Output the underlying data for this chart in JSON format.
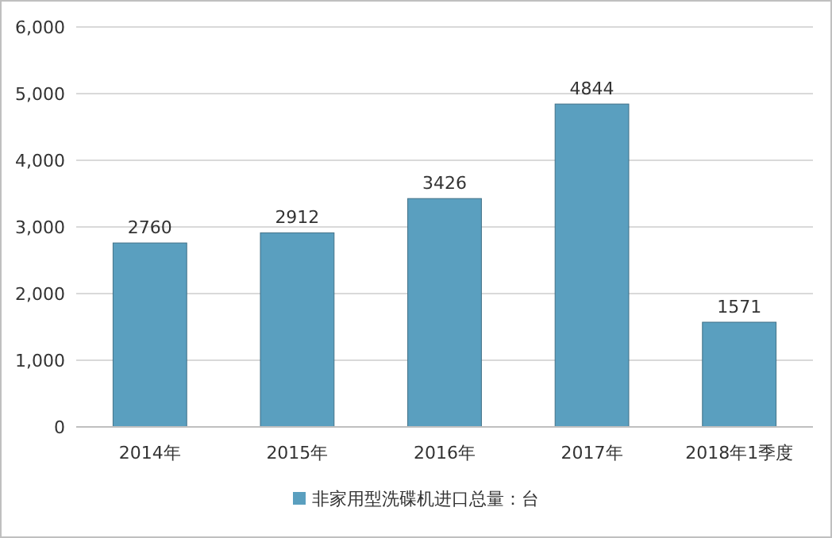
{
  "chart_data": {
    "type": "bar",
    "categories": [
      "2014年",
      "2015年",
      "2016年",
      "2017年",
      "2018年1季度"
    ],
    "series": [
      {
        "name": "非家用型洗碟机进口总量：台",
        "color": "#5a9fbf",
        "values": [
          2760,
          2912,
          3426,
          4844,
          1571
        ]
      }
    ],
    "ylim": [
      0,
      6000
    ],
    "yticks": [
      0,
      {
        "value": 1000,
        "label": "1,000"
      },
      {
        "value": 2000,
        "label": "2,000"
      },
      {
        "value": 3000,
        "label": "3,000"
      },
      {
        "value": 4000,
        "label": "4,000"
      },
      {
        "value": 5000,
        "label": "5,000"
      },
      {
        "value": 6000,
        "label": "6,000"
      }
    ],
    "grid": "y",
    "legend": "bottom",
    "data_labels": true
  }
}
